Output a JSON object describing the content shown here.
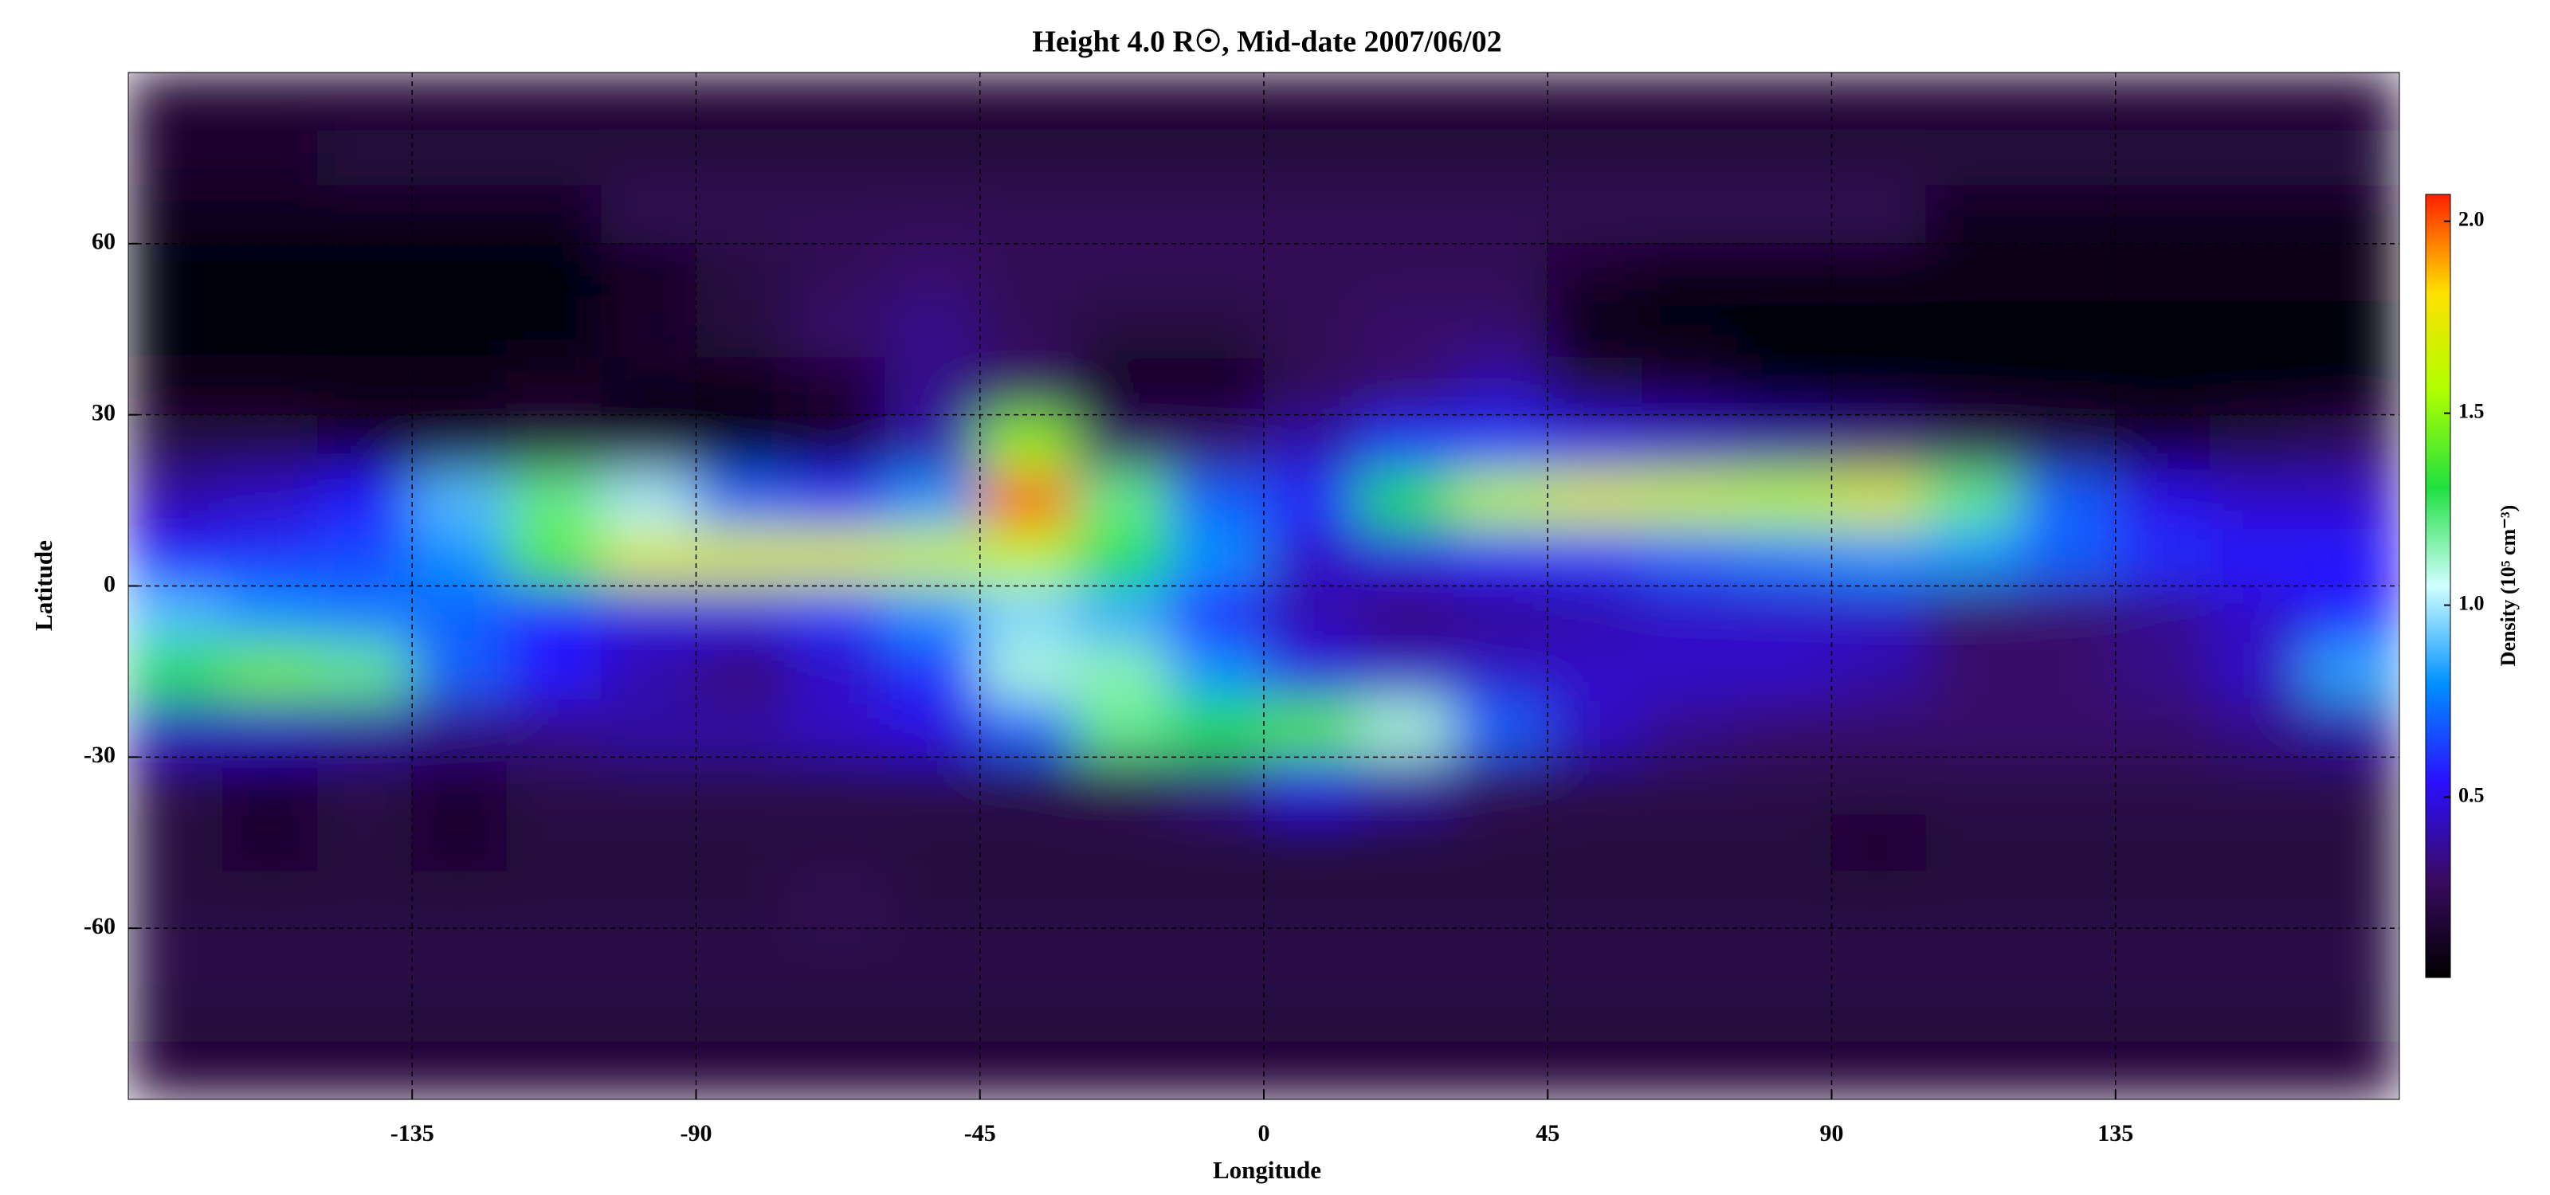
{
  "chart_data": {
    "type": "heatmap",
    "title": "Height 4.0 R☉, Mid-date 2007/06/02",
    "xlabel": "Longitude",
    "ylabel": "Latitude",
    "colorbar_label": "Density (10⁵ cm⁻³)",
    "x": [
      -172.5,
      -157.5,
      -142.5,
      -127.5,
      -112.5,
      -97.5,
      -82.5,
      -67.5,
      -52.5,
      -37.5,
      -22.5,
      -7.5,
      7.5,
      22.5,
      37.5,
      52.5,
      67.5,
      82.5,
      97.5,
      112.5,
      127.5,
      142.5,
      157.5,
      172.5
    ],
    "y": [
      85,
      75,
      65,
      55,
      45,
      35,
      25,
      15,
      5,
      -5,
      -15,
      -25,
      -35,
      -45,
      -55,
      -65,
      -75,
      -85
    ],
    "z": [
      [
        0.15,
        0.15,
        0.15,
        0.15,
        0.15,
        0.15,
        0.15,
        0.15,
        0.15,
        0.15,
        0.15,
        0.15,
        0.15,
        0.15,
        0.15,
        0.15,
        0.15,
        0.15,
        0.15,
        0.15,
        0.15,
        0.15,
        0.15,
        0.15
      ],
      [
        0.15,
        0.15,
        0.2,
        0.2,
        0.2,
        0.2,
        0.2,
        0.2,
        0.2,
        0.2,
        0.2,
        0.2,
        0.2,
        0.2,
        0.2,
        0.2,
        0.2,
        0.2,
        0.2,
        0.2,
        0.2,
        0.2,
        0.2,
        0.2
      ],
      [
        0.1,
        0.1,
        0.1,
        0.1,
        0.1,
        0.25,
        0.25,
        0.25,
        0.25,
        0.25,
        0.25,
        0.25,
        0.25,
        0.25,
        0.25,
        0.25,
        0.25,
        0.25,
        0.25,
        0.1,
        0.1,
        0.1,
        0.1,
        0.1
      ],
      [
        0.05,
        0.05,
        0.05,
        0.05,
        0.05,
        0.1,
        0.2,
        0.25,
        0.3,
        0.25,
        0.25,
        0.25,
        0.25,
        0.25,
        0.25,
        0.15,
        0.08,
        0.08,
        0.08,
        0.08,
        0.08,
        0.08,
        0.08,
        0.08
      ],
      [
        0.05,
        0.05,
        0.05,
        0.05,
        0.05,
        0.15,
        0.2,
        0.3,
        0.35,
        0.25,
        0.2,
        0.2,
        0.25,
        0.3,
        0.3,
        0.05,
        0.05,
        0.05,
        0.05,
        0.05,
        0.05,
        0.05,
        0.05,
        0.05
      ],
      [
        0.08,
        0.08,
        0.08,
        0.08,
        0.12,
        0.1,
        0.08,
        0.15,
        0.35,
        0.3,
        0.1,
        0.1,
        0.25,
        0.3,
        0.4,
        0.2,
        0.15,
        0.05,
        0.05,
        0.05,
        0.05,
        0.05,
        0.05,
        0.05
      ],
      [
        0.2,
        0.2,
        0.15,
        0.15,
        0.2,
        0.1,
        0.08,
        0.15,
        0.4,
        1.5,
        0.3,
        0.3,
        0.4,
        0.6,
        0.6,
        0.5,
        0.45,
        0.4,
        0.35,
        0.25,
        0.2,
        0.15,
        0.2,
        0.25
      ],
      [
        0.4,
        0.45,
        0.55,
        0.9,
        1.2,
        1.0,
        0.7,
        0.6,
        0.8,
        2.0,
        1.2,
        0.7,
        0.6,
        1.3,
        1.6,
        1.7,
        1.65,
        1.6,
        1.7,
        1.2,
        0.7,
        0.5,
        0.45,
        0.45
      ],
      [
        0.55,
        0.6,
        0.65,
        0.8,
        1.4,
        1.7,
        1.7,
        1.7,
        1.65,
        1.6,
        1.3,
        0.8,
        0.45,
        0.5,
        0.55,
        0.6,
        0.7,
        0.75,
        0.8,
        0.8,
        0.7,
        0.6,
        0.55,
        0.55
      ],
      [
        0.9,
        0.8,
        0.75,
        0.7,
        0.55,
        0.5,
        0.5,
        0.6,
        0.8,
        0.95,
        0.85,
        0.55,
        0.4,
        0.3,
        0.35,
        0.4,
        0.45,
        0.45,
        0.45,
        0.3,
        0.3,
        0.35,
        0.45,
        0.55
      ],
      [
        1.3,
        1.45,
        1.2,
        0.7,
        0.55,
        0.4,
        0.3,
        0.45,
        0.6,
        1.1,
        1.15,
        0.8,
        0.5,
        0.45,
        0.45,
        0.45,
        0.45,
        0.45,
        0.4,
        0.3,
        0.3,
        0.35,
        0.45,
        0.85
      ],
      [
        0.45,
        0.45,
        0.4,
        0.35,
        0.35,
        0.4,
        0.4,
        0.45,
        0.5,
        0.7,
        1.2,
        1.3,
        1.4,
        1.1,
        0.7,
        0.45,
        0.35,
        0.3,
        0.3,
        0.3,
        0.3,
        0.3,
        0.35,
        0.4
      ],
      [
        0.22,
        0.15,
        0.22,
        0.15,
        0.22,
        0.22,
        0.22,
        0.22,
        0.22,
        0.22,
        0.25,
        0.35,
        0.5,
        0.4,
        0.25,
        0.22,
        0.22,
        0.22,
        0.22,
        0.22,
        0.22,
        0.22,
        0.22,
        0.22
      ],
      [
        0.2,
        0.15,
        0.2,
        0.15,
        0.2,
        0.2,
        0.2,
        0.2,
        0.2,
        0.2,
        0.2,
        0.2,
        0.2,
        0.2,
        0.2,
        0.2,
        0.2,
        0.2,
        0.15,
        0.2,
        0.2,
        0.2,
        0.2,
        0.2
      ],
      [
        0.2,
        0.2,
        0.2,
        0.2,
        0.2,
        0.2,
        0.2,
        0.25,
        0.2,
        0.2,
        0.2,
        0.2,
        0.2,
        0.2,
        0.2,
        0.2,
        0.2,
        0.2,
        0.2,
        0.2,
        0.2,
        0.2,
        0.2,
        0.2
      ],
      [
        0.22,
        0.22,
        0.22,
        0.22,
        0.22,
        0.22,
        0.22,
        0.22,
        0.22,
        0.22,
        0.22,
        0.22,
        0.22,
        0.22,
        0.22,
        0.22,
        0.22,
        0.22,
        0.22,
        0.22,
        0.22,
        0.22,
        0.22,
        0.22
      ],
      [
        0.2,
        0.2,
        0.2,
        0.2,
        0.2,
        0.2,
        0.2,
        0.2,
        0.2,
        0.2,
        0.2,
        0.2,
        0.2,
        0.2,
        0.2,
        0.2,
        0.2,
        0.2,
        0.2,
        0.2,
        0.2,
        0.2,
        0.2,
        0.2
      ],
      [
        0.17,
        0.17,
        0.17,
        0.17,
        0.17,
        0.17,
        0.17,
        0.17,
        0.17,
        0.17,
        0.17,
        0.17,
        0.17,
        0.17,
        0.17,
        0.17,
        0.17,
        0.17,
        0.17,
        0.17,
        0.17,
        0.17,
        0.17,
        0.17
      ]
    ],
    "xlim": [
      -180,
      180
    ],
    "xticks": [
      -135,
      -90,
      -45,
      0,
      45,
      90,
      135
    ],
    "ylim": [
      -90,
      90
    ],
    "yticks": [
      -60,
      -30,
      0,
      30,
      60
    ],
    "clim": [
      0.03,
      2.07
    ],
    "cticks": [
      0.5,
      {
        "value": 1,
        "label": "1.0"
      },
      1.5,
      {
        "value": 2,
        "label": "2.0"
      }
    ],
    "colormap": [
      "#000000",
      "#3a0a62",
      "#2a10ff",
      "#0090ff",
      "#d0ffff",
      "#20e040",
      "#b0ff00",
      "#ffe000",
      "#ff2000"
    ],
    "grid": true
  }
}
